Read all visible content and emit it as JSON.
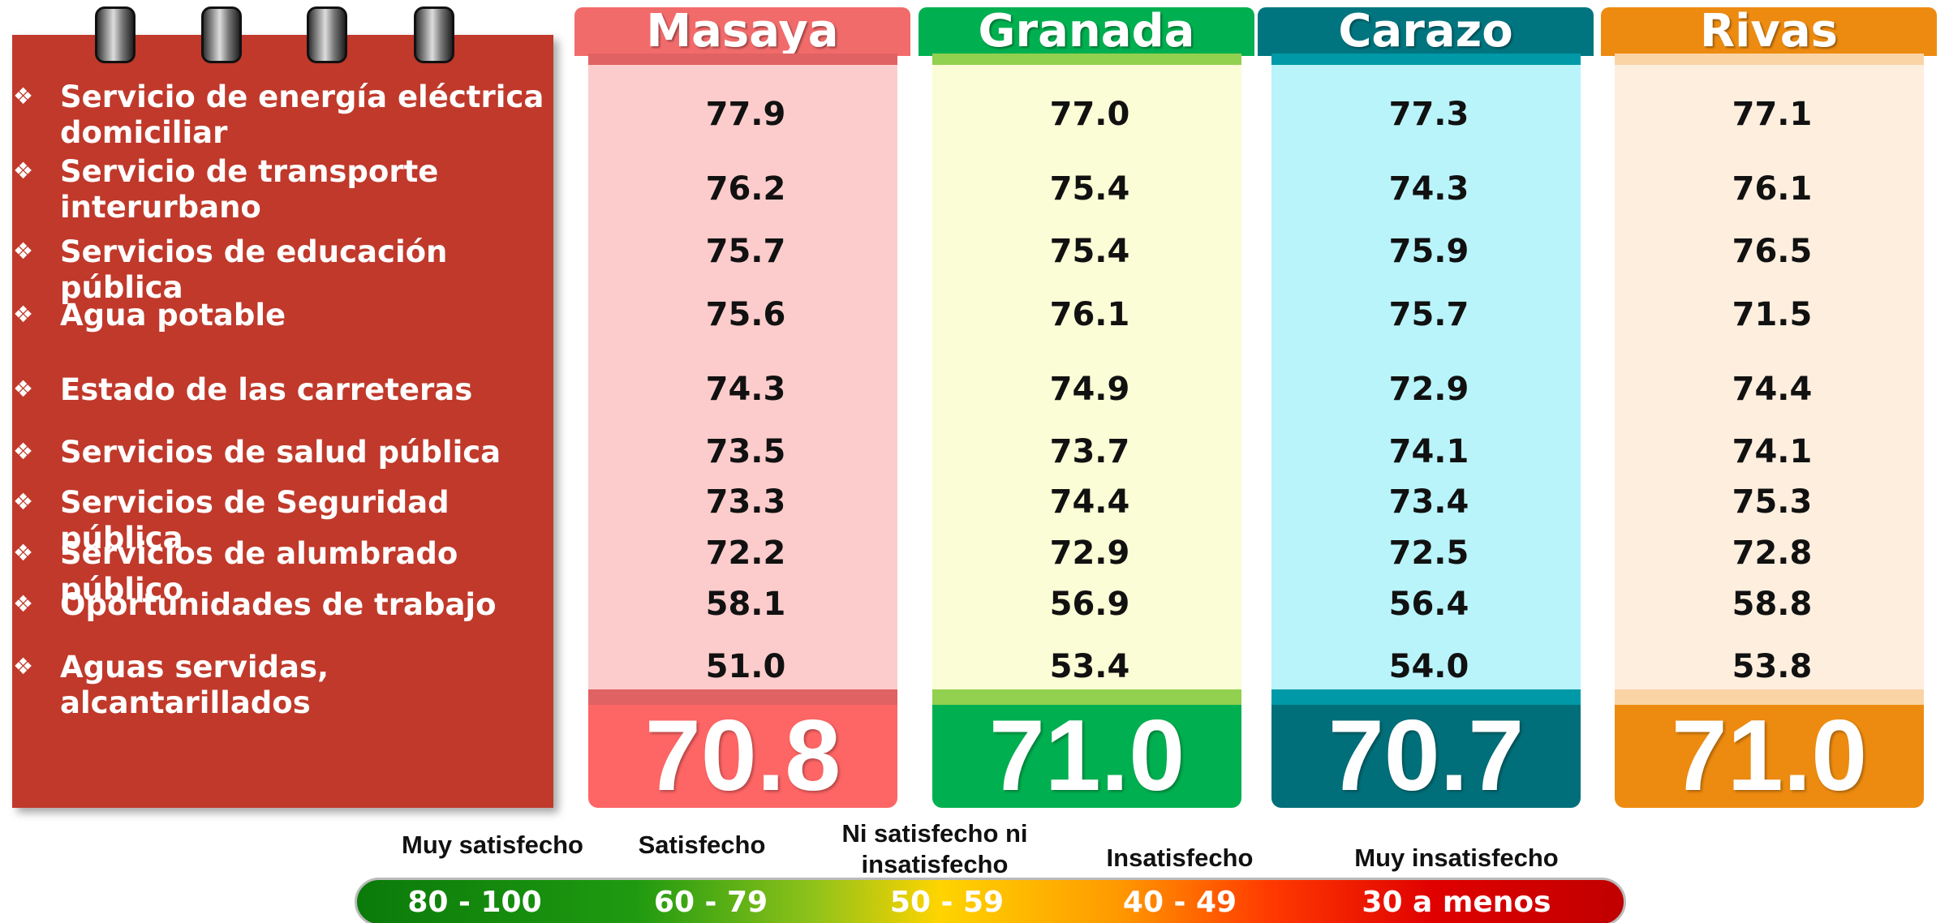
{
  "services": [
    [
      "Servicio de energía eléctrica",
      "domiciliar"
    ],
    [
      "Servicio de transporte",
      "interurbano"
    ],
    [
      "Servicios de educación pública"
    ],
    [
      "Agua potable"
    ],
    [
      "Estado de las carreteras"
    ],
    [
      "Servicios de salud pública"
    ],
    [
      "Servicios de Seguridad pública"
    ],
    [
      "Servicios de alumbrado público"
    ],
    [
      "Oportunidades de trabajo"
    ],
    [
      "Aguas servidas, alcantarillados"
    ]
  ],
  "regions": [
    {
      "name": "Masaya",
      "values": [
        "77.9",
        "76.2",
        "75.7",
        "75.6",
        "74.3",
        "73.5",
        "73.3",
        "72.2",
        "58.1",
        "51.0"
      ],
      "total": "70.8"
    },
    {
      "name": "Granada",
      "values": [
        "77.0",
        "75.4",
        "75.4",
        "76.1",
        "74.9",
        "73.7",
        "74.4",
        "72.9",
        "56.9",
        "53.4"
      ],
      "total": "71.0"
    },
    {
      "name": "Carazo",
      "values": [
        "77.3",
        "74.3",
        "75.9",
        "75.7",
        "72.9",
        "74.1",
        "73.4",
        "72.5",
        "56.4",
        "54.0"
      ],
      "total": "70.7"
    },
    {
      "name": "Rivas",
      "values": [
        "77.1",
        "76.1",
        "76.5",
        "71.5",
        "74.4",
        "74.1",
        "75.3",
        "72.8",
        "58.8",
        "53.8"
      ],
      "total": "71.0"
    }
  ],
  "legend": [
    {
      "label": [
        "Muy satisfecho"
      ],
      "range": "80 - 100"
    },
    {
      "label": [
        "Satisfecho"
      ],
      "range": "60 - 79"
    },
    {
      "label": [
        "Ni satisfecho ni",
        "insatisfecho"
      ],
      "range": "50 - 59"
    },
    {
      "label": [
        "Insatisfecho"
      ],
      "range": "40 - 49"
    },
    {
      "label": [
        "Muy insatisfecho"
      ],
      "range": "30 a menos"
    }
  ]
}
